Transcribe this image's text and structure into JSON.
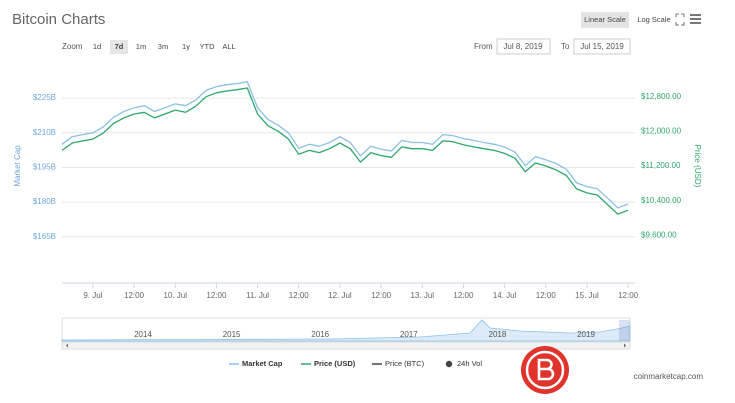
{
  "header": {
    "title": "Bitcoin Charts",
    "scale_buttons": [
      "Linear Scale",
      "Log Scale"
    ]
  },
  "toolbar": {
    "zoom_label": "Zoom",
    "zoom_buttons": [
      "1d",
      "7d",
      "1m",
      "3m",
      "1y",
      "YTD",
      "ALL"
    ],
    "from_label": "From",
    "from_value": "Jul 8, 2019",
    "to_label": "To",
    "to_value": "Jul 15, 2019"
  },
  "chart_data": {
    "type": "line",
    "y_label": "Market Cap",
    "y2_label": "Price (USD)",
    "x": [
      15,
      18,
      21,
      24,
      27,
      30,
      33,
      36,
      39,
      42,
      45,
      48,
      51,
      54,
      57,
      60,
      63,
      66,
      69,
      72,
      75,
      78,
      81,
      84,
      87,
      90,
      93,
      96,
      99,
      102,
      105,
      108,
      111,
      114,
      117,
      120,
      123,
      126,
      129,
      132,
      135,
      138,
      141,
      144,
      147,
      150,
      153,
      156,
      159,
      162,
      165,
      168,
      171,
      174,
      177,
      180
    ],
    "xlim": [
      15,
      182
    ],
    "xticks": [
      {
        "value": 24,
        "label": "9. Jul"
      },
      {
        "value": 36,
        "label": "12:00"
      },
      {
        "value": 48,
        "label": "10. Jul"
      },
      {
        "value": 60,
        "label": "12:00"
      },
      {
        "value": 72,
        "label": "11. Jul"
      },
      {
        "value": 84,
        "label": "12:00"
      },
      {
        "value": 96,
        "label": "12. Jul"
      },
      {
        "value": 108,
        "label": "12:00"
      },
      {
        "value": 120,
        "label": "13. Jul"
      },
      {
        "value": 132,
        "label": "12:00"
      },
      {
        "value": 144,
        "label": "14. Jul"
      },
      {
        "value": 156,
        "label": "12:00"
      },
      {
        "value": 168,
        "label": "15. Jul"
      },
      {
        "value": 180,
        "label": "12:00"
      }
    ],
    "ylim": [
      145,
      235
    ],
    "yticks": [
      {
        "value": 225,
        "label": "$225B"
      },
      {
        "value": 210,
        "label": "$210B"
      },
      {
        "value": 195,
        "label": "$195B"
      },
      {
        "value": 180,
        "label": "$180B"
      },
      {
        "value": 165,
        "label": "$165B"
      }
    ],
    "y2lim": [
      8500,
      13300
    ],
    "y2ticks": [
      {
        "value": 12800,
        "label": "$12,800.00"
      },
      {
        "value": 12000,
        "label": "$12,000.00"
      },
      {
        "value": 11200,
        "label": "$11,200.00"
      },
      {
        "value": 10400,
        "label": "$10,400.00"
      },
      {
        "value": 9600,
        "label": "$9,600.00"
      }
    ],
    "grid": true,
    "series": [
      {
        "name": "Market Cap",
        "color": "#8cc0e8",
        "axis": "y",
        "values": [
          205.0,
          208.3,
          209.2,
          210.0,
          212.5,
          216.7,
          219.2,
          220.8,
          221.7,
          219.2,
          220.8,
          222.5,
          221.7,
          224.2,
          228.3,
          230.0,
          230.8,
          231.3,
          232.1,
          220.8,
          215.8,
          213.3,
          210.0,
          203.3,
          205.0,
          204.2,
          205.8,
          208.3,
          205.8,
          200.0,
          204.2,
          202.9,
          202.1,
          206.7,
          205.8,
          205.8,
          205.0,
          209.2,
          208.8,
          207.5,
          206.7,
          205.8,
          205.0,
          203.8,
          201.7,
          195.8,
          199.6,
          198.3,
          196.7,
          194.2,
          188.3,
          186.7,
          185.8,
          181.7,
          177.5,
          179.2
        ]
      },
      {
        "name": "Price (USD)",
        "color": "#2fa66e",
        "axis": "y2",
        "values": [
          11560,
          11730,
          11780,
          11820,
          11960,
          12180,
          12310,
          12400,
          12440,
          12310,
          12400,
          12490,
          12440,
          12580,
          12800,
          12890,
          12930,
          12960,
          13000,
          12400,
          12130,
          12000,
          11820,
          11470,
          11560,
          11510,
          11600,
          11730,
          11600,
          11290,
          11510,
          11440,
          11400,
          11640,
          11600,
          11600,
          11560,
          11780,
          11760,
          11690,
          11640,
          11600,
          11560,
          11490,
          11380,
          11070,
          11270,
          11200,
          11110,
          10980,
          10670,
          10580,
          10530,
          10310,
          10090,
          10180
        ]
      }
    ],
    "inactive_legend": [
      {
        "name": "Price (BTC)",
        "color": "#444444"
      },
      {
        "name": "24h Vol",
        "color": "#444444"
      }
    ]
  },
  "navigator": {
    "years": [
      "2014",
      "2015",
      "2016",
      "2017",
      "2018",
      "2019"
    ]
  },
  "footer": {
    "credit": "coinmarketcap.com"
  }
}
